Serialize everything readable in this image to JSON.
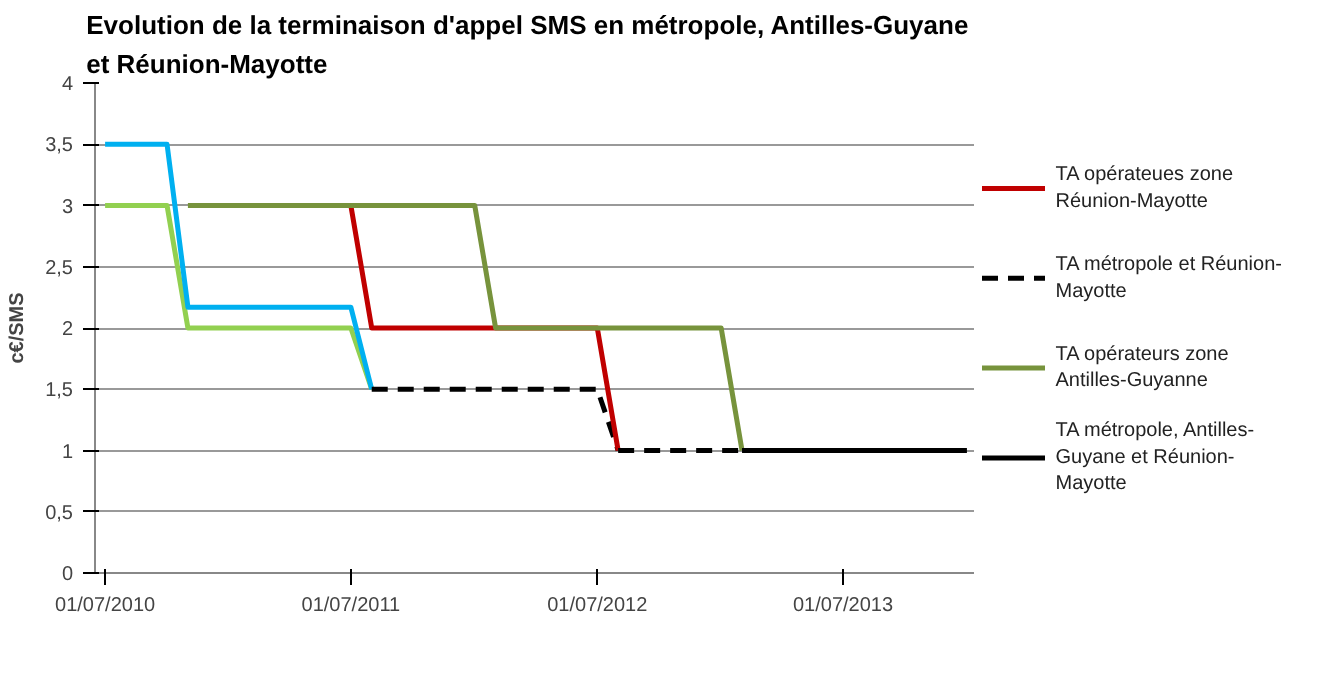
{
  "chart_data": {
    "type": "line",
    "title": "Evolution  de la terminaison  d'appel SMS en métropole, Antilles-Guyane\net Réunion-Mayotte",
    "ylabel": "c€/SMS",
    "xlim": [
      "2010-06-16",
      "2014-01-13"
    ],
    "ylim": [
      0,
      4
    ],
    "xticks": [
      {
        "value": "2010-07-01",
        "label": "01/07/2010"
      },
      {
        "value": "2011-07-01",
        "label": "01/07/2011"
      },
      {
        "value": "2012-07-01",
        "label": "01/07/2012"
      },
      {
        "value": "2013-07-01",
        "label": "01/07/2013"
      }
    ],
    "yticks": [
      {
        "value": 0,
        "label": "0"
      },
      {
        "value": 0.5,
        "label": "0,5"
      },
      {
        "value": 1,
        "label": "1"
      },
      {
        "value": 1.5,
        "label": "1,5"
      },
      {
        "value": 2,
        "label": "2"
      },
      {
        "value": 2.5,
        "label": "2,5"
      },
      {
        "value": 3,
        "label": "3"
      },
      {
        "value": 3.5,
        "label": "3,5"
      },
      {
        "value": 4,
        "label": "4"
      }
    ],
    "grid": "y",
    "legend": "right",
    "marker": "none",
    "series": [
      {
        "color": "#92d050",
        "x": [
          "2010-07-01",
          "2010-10-01",
          "2010-11-01",
          "2011-07-01",
          "2011-08-01"
        ],
        "values": [
          3,
          3,
          2,
          2,
          1.5
        ]
      },
      {
        "color": "#00b0f0",
        "x": [
          "2010-07-01",
          "2010-10-01",
          "2010-11-01",
          "2011-07-01",
          "2011-08-01"
        ],
        "values": [
          3.5,
          3.5,
          2.17,
          2.17,
          1.5
        ]
      },
      {
        "color": "#000000",
        "line_style": "dashed",
        "x": [
          "2011-08-01",
          "2012-07-01",
          "2012-08-01"
        ],
        "values": [
          1.5,
          1.5,
          1
        ]
      },
      {
        "name": "TA opérateues zone Réunion-Mayotte",
        "color": "#c00000",
        "x": [
          "2011-07-01",
          "2011-08-01",
          "2012-07-01",
          "2012-08-01"
        ],
        "values": [
          3,
          2,
          2,
          1
        ]
      },
      {
        "name": "TA métropole et Réunion-Mayotte",
        "color": "#000000",
        "line_style": "dashed",
        "x": [
          "2012-08-01",
          "2013-02-01"
        ],
        "values": [
          1,
          1
        ]
      },
      {
        "name": "TA opérateurs zone Antilles-Guyanne",
        "color": "#77933c",
        "x": [
          "2010-11-01",
          "2012-01-01",
          "2012-02-01",
          "2013-01-01",
          "2013-02-01"
        ],
        "values": [
          3,
          3,
          2,
          2,
          1
        ]
      },
      {
        "name": "TA métropole, Antilles-Guyane et Réunion-Mayotte",
        "color": "#000000",
        "line_style": "solid",
        "x": [
          "2013-02-01",
          "2014-01-01"
        ],
        "values": [
          1,
          1
        ]
      }
    ]
  }
}
